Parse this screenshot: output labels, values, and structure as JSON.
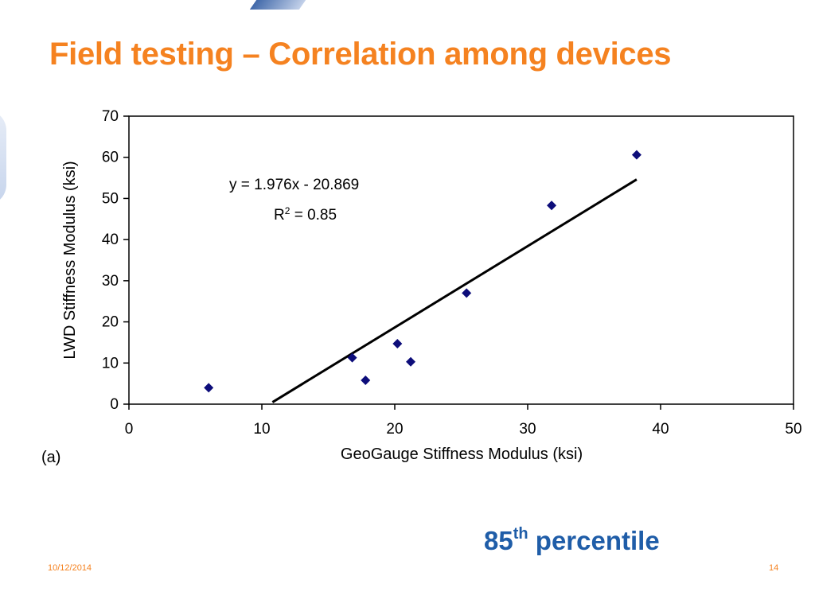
{
  "slide": {
    "title": "Field testing – Correlation among devices",
    "callout_number": "85",
    "callout_sup": "th",
    "callout_text": "percentile",
    "date": "10/12/2014",
    "page_number": "14"
  },
  "colors": {
    "title": "#f58220",
    "callout": "#1f5da8",
    "marker": "#0d0d7a",
    "trendline": "#000000"
  },
  "chart_data": {
    "type": "scatter",
    "xlabel": "GeoGauge Stiffness Modulus (ksi)",
    "ylabel": "LWD Stiffness Modulus (ksi)",
    "panel_label": "(a)",
    "xlim": [
      0,
      50
    ],
    "ylim": [
      0,
      70
    ],
    "xticks": [
      0,
      10,
      20,
      30,
      40,
      50
    ],
    "yticks": [
      0,
      10,
      20,
      30,
      40,
      50,
      60,
      70
    ],
    "grid": false,
    "marker": "diamond",
    "points": [
      {
        "x": 6,
        "y": 4
      },
      {
        "x": 16.8,
        "y": 11.3
      },
      {
        "x": 17.8,
        "y": 5.8
      },
      {
        "x": 20.2,
        "y": 14.7
      },
      {
        "x": 21.2,
        "y": 10.3
      },
      {
        "x": 25.4,
        "y": 27
      },
      {
        "x": 31.8,
        "y": 48.3
      },
      {
        "x": 38.2,
        "y": 60.6
      }
    ],
    "trendline": {
      "slope": 1.976,
      "intercept": -20.869,
      "x_range": [
        10.8,
        38.2
      ],
      "equation": "y = 1.976x - 20.869",
      "r2_prefix": "R",
      "r2_sup": "2",
      "r2_value": " = 0.85"
    }
  }
}
